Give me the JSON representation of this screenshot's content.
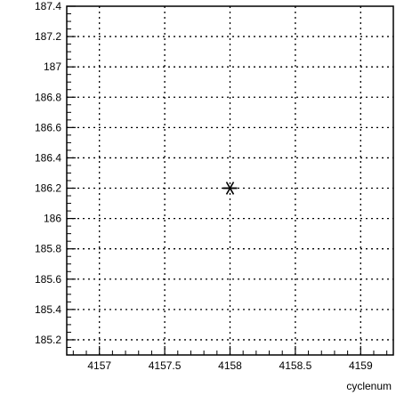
{
  "chart_data": {
    "type": "scatter",
    "title": "",
    "xlabel": "cyclenum",
    "ylabel": "",
    "xlim": [
      4156.75,
      4159.25
    ],
    "ylim": [
      185.1,
      187.4
    ],
    "grid": true,
    "x_ticks": [
      4157,
      4157.5,
      4158,
      4158.5,
      4159
    ],
    "x_tick_labels": [
      "4157",
      "4157.5",
      "4158",
      "4158.5",
      "4159"
    ],
    "y_ticks": [
      185.2,
      185.4,
      185.6,
      185.8,
      186,
      186.2,
      186.4,
      186.6,
      186.8,
      187,
      187.2,
      187.4
    ],
    "y_tick_labels": [
      "185.2",
      "185.4",
      "185.6",
      "185.8",
      "186",
      "186.2",
      "186.4",
      "186.6",
      "186.8",
      "187",
      "187.2",
      "187.4"
    ],
    "series": [
      {
        "marker": "asterisk",
        "color": "#000000",
        "points": [
          {
            "x": 4158,
            "y": 186.2
          }
        ]
      }
    ]
  }
}
